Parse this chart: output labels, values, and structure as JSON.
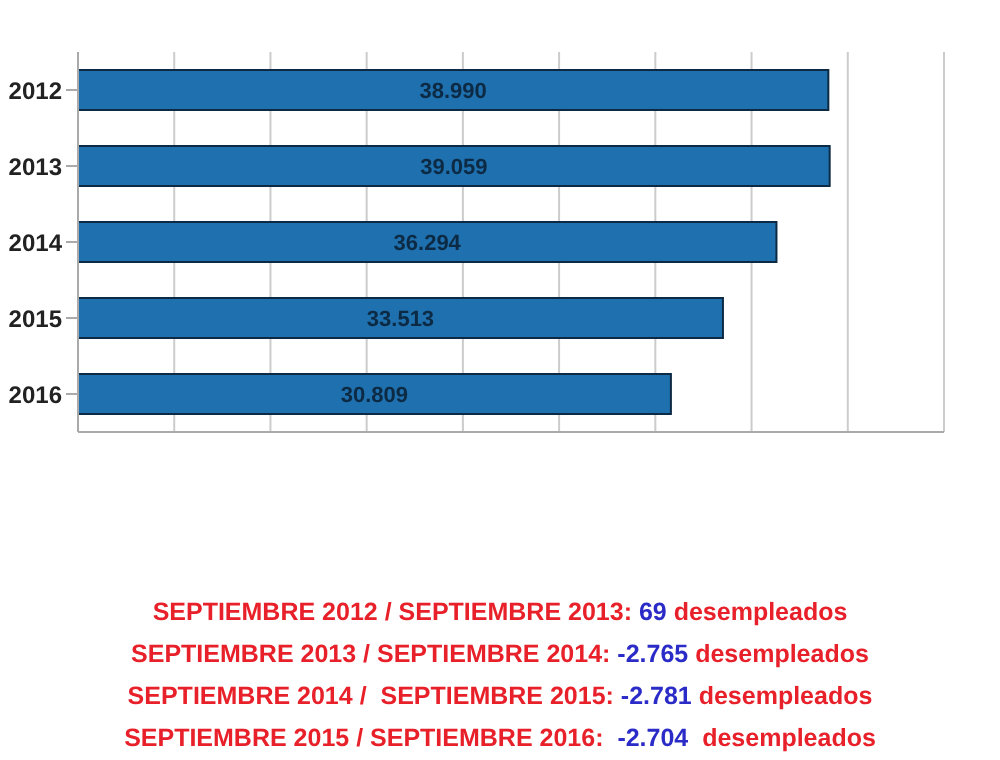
{
  "chart_data": {
    "type": "bar",
    "orientation": "horizontal",
    "categories": [
      "2012",
      "2013",
      "2014",
      "2015",
      "2016"
    ],
    "values": [
      38990,
      39059,
      36294,
      33513,
      30809
    ],
    "value_labels": [
      "38.990",
      "39.059",
      "36.294",
      "33.513",
      "30.809"
    ],
    "color": "#1f70ae",
    "xlim": [
      0,
      45000
    ],
    "grid": "x",
    "tick_labels": "y",
    "annotations": [
      "SEPTIEMBRE 2012 / SEPTIEMBRE 2013: 69 desempleados",
      "SEPTIEMBRE 2013 / SEPTIEMBRE 2014: -2.765 desempleados",
      "SEPTIEMBRE 2014 /  SEPTIEMBRE 2015: -2.781 desempleados",
      "SEPTIEMBRE 2015 / SEPTIEMBRE 2016:  -2.704  desempleados"
    ]
  }
}
